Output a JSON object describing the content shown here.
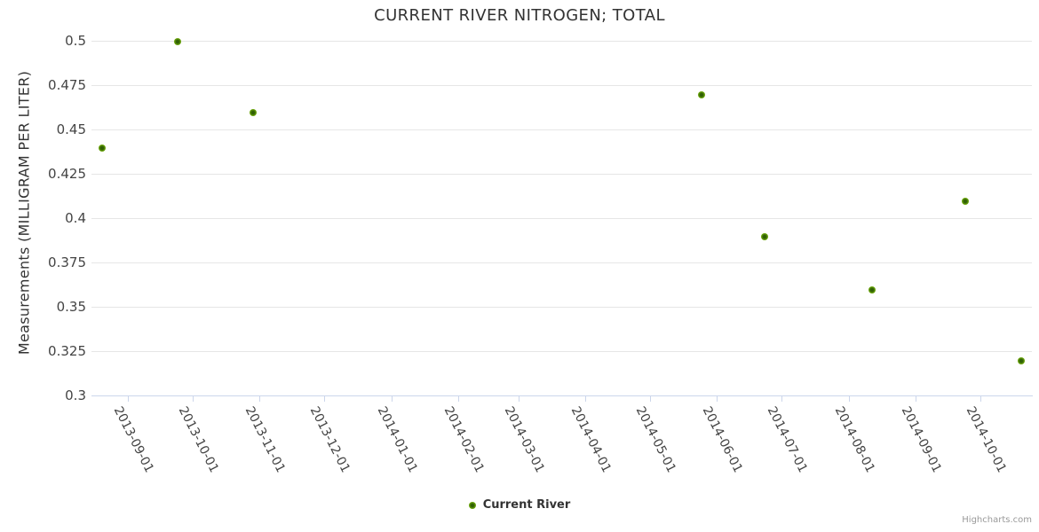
{
  "chart_data": {
    "type": "scatter",
    "title": "CURRENT RIVER NITROGEN; TOTAL",
    "xlabel": "",
    "ylabel": "Measurements (MILLIGRAM PER LITER)",
    "grid": true,
    "legend_position": "bottom-center",
    "x_axis": {
      "type": "datetime",
      "min": "2013-08-15",
      "max": "2014-10-25",
      "label_rotation_deg": 63,
      "tick_labels": [
        "2013-09-01",
        "2013-10-01",
        "2013-11-01",
        "2013-12-01",
        "2014-01-01",
        "2014-02-01",
        "2014-03-01",
        "2014-04-01",
        "2014-05-01",
        "2014-06-01",
        "2014-07-01",
        "2014-08-01",
        "2014-09-01",
        "2014-10-01"
      ]
    },
    "y_axis": {
      "min": 0.3,
      "max": 0.5,
      "tick_interval": 0.025,
      "tick_labels": [
        "0.5",
        "0.475",
        "0.45",
        "0.425",
        "0.4",
        "0.375",
        "0.35",
        "0.325",
        "0.3"
      ]
    },
    "series": [
      {
        "name": "Current River",
        "color": "#77b30e",
        "points": [
          {
            "date": "2013-08-20",
            "value": 0.44
          },
          {
            "date": "2013-09-24",
            "value": 0.5
          },
          {
            "date": "2013-10-29",
            "value": 0.46
          },
          {
            "date": "2014-05-25",
            "value": 0.47
          },
          {
            "date": "2014-06-23",
            "value": 0.39
          },
          {
            "date": "2014-08-12",
            "value": 0.36
          },
          {
            "date": "2014-09-24",
            "value": 0.41
          },
          {
            "date": "2014-10-20",
            "value": 0.32
          }
        ]
      }
    ]
  },
  "credits": {
    "label": "Highcharts.com"
  },
  "colors": {
    "marker_main": "#77b30e",
    "marker_core": "#2f5f05",
    "marker_edge": "#8cc41e",
    "gridline": "#e6e6e6",
    "axis_line": "#ccd6eb",
    "title_text": "#333333",
    "tick_label_text": "#444444",
    "credits_text": "#999999",
    "background": "#ffffff"
  }
}
